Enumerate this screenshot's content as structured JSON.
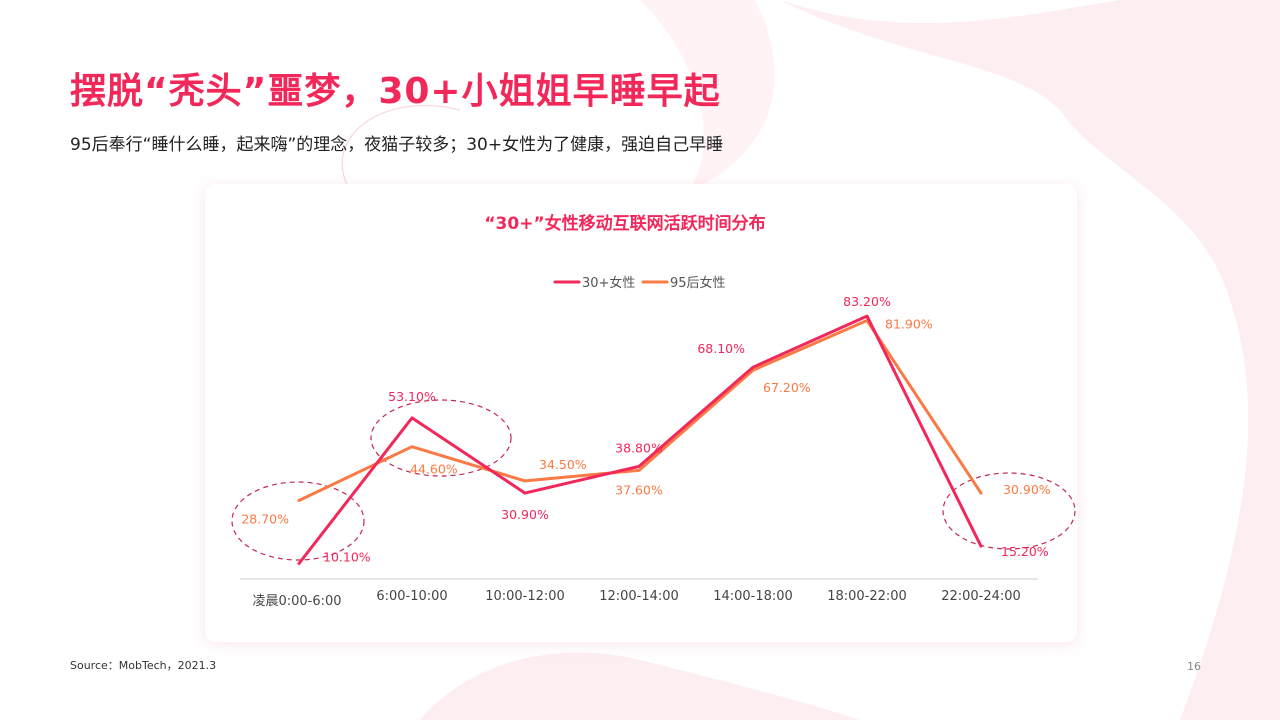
{
  "page": {
    "title": "摆脱“秃头”噩梦，30+小姐姐早睡早起",
    "subtitle": "95后奉行“睡什么睡，起来嗨”的理念，夜猫子较多；30+女性为了健康，强迫自己早睡",
    "source": "Source：MobTech，2021.3",
    "page_number": "16"
  },
  "chart_data": {
    "type": "line",
    "title": "“30+”女性移动互联网活跃时间分布",
    "categories": [
      "凌晨0:00-6:00",
      "6:00-10:00",
      "10:00-12:00",
      "12:00-14:00",
      "14:00-18:00",
      "18:00-22:00",
      "22:00-24:00"
    ],
    "series": [
      {
        "name": "30+女性",
        "color": "#f2275a",
        "values": [
          10.1,
          53.1,
          30.9,
          38.8,
          68.1,
          83.2,
          15.2
        ],
        "labels": [
          "10.10%",
          "53.10%",
          "30.90%",
          "38.80%",
          "68.10%",
          "83.20%",
          "15.20%"
        ]
      },
      {
        "name": "95后女性",
        "color": "#f97a45",
        "values": [
          28.7,
          44.6,
          34.5,
          37.6,
          67.2,
          81.9,
          30.9
        ],
        "labels": [
          "28.70%",
          "44.60%",
          "34.50%",
          "37.60%",
          "67.20%",
          "81.90%",
          "30.90%"
        ]
      }
    ],
    "legend_position": "top-center",
    "highlighted_categories": [
      "凌晨0:00-6:00",
      "6:00-10:00",
      "22:00-24:00"
    ],
    "grid": false,
    "xlabel": "",
    "ylabel": ""
  }
}
